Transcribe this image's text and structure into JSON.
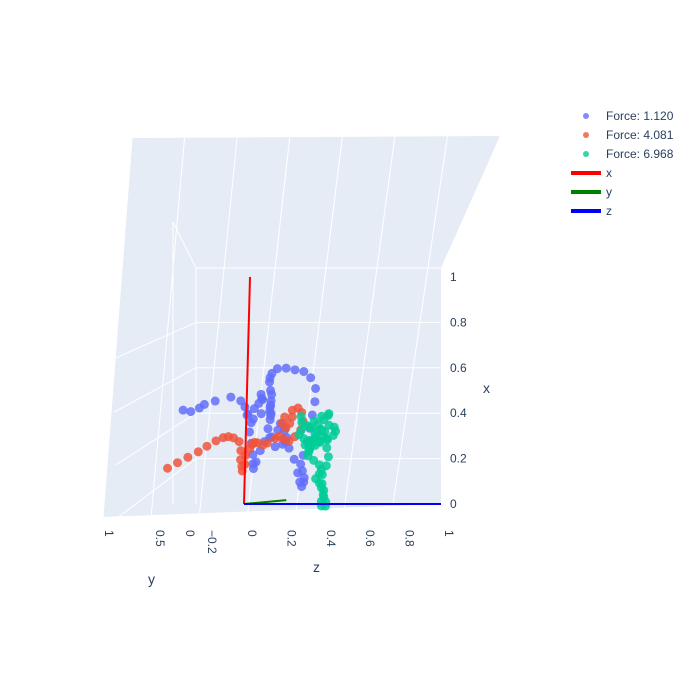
{
  "chart_data": {
    "type": "scatter3d",
    "axes": {
      "x": {
        "title": "x",
        "range": [
          0,
          1
        ],
        "ticks": [
          "0",
          "0.2",
          "0.4",
          "0.6",
          "0.8",
          "1"
        ]
      },
      "y": {
        "title": "y",
        "range": [
          -0.3,
          1
        ],
        "ticks": [
          "1",
          "0.5",
          "0",
          "−0.2"
        ]
      },
      "z": {
        "title": "z",
        "range": [
          0,
          1
        ],
        "ticks": [
          "0",
          "0.2",
          "0.4",
          "0.6",
          "0.8",
          "1"
        ]
      }
    },
    "series": [
      {
        "name": "Force: 1.120",
        "kind": "markers",
        "color": "#636efa",
        "points": [
          [
            0.46,
            0.45,
            0.0
          ],
          [
            0.45,
            0.42,
            0.02
          ],
          [
            0.46,
            0.36,
            0.02
          ],
          [
            0.47,
            0.3,
            0.0
          ],
          [
            0.48,
            0.25,
            0.02
          ],
          [
            0.49,
            0.18,
            0.05
          ],
          [
            0.47,
            0.15,
            0.08
          ],
          [
            0.44,
            0.12,
            0.08
          ],
          [
            0.4,
            0.09,
            0.07
          ],
          [
            0.38,
            0.06,
            0.08
          ],
          [
            0.4,
            0.02,
            0.09
          ],
          [
            0.46,
            0.0,
            0.08
          ],
          [
            0.48,
            -0.03,
            0.05
          ],
          [
            0.46,
            -0.05,
            0.04
          ],
          [
            0.44,
            -0.03,
            0.04
          ],
          [
            0.42,
            0.0,
            0.04
          ],
          [
            0.4,
            0.03,
            0.03
          ],
          [
            0.36,
            0.02,
            0.04
          ],
          [
            0.32,
            0.03,
            0.04
          ],
          [
            0.27,
            0.03,
            0.05
          ],
          [
            0.22,
            0.03,
            0.06
          ],
          [
            0.18,
            0.04,
            0.07
          ],
          [
            0.16,
            0.05,
            0.08
          ],
          [
            0.19,
            0.06,
            0.1
          ],
          [
            0.24,
            0.06,
            0.12
          ],
          [
            0.28,
            0.06,
            0.14
          ],
          [
            0.3,
            0.05,
            0.17
          ],
          [
            0.33,
            0.05,
            0.2
          ],
          [
            0.36,
            0.06,
            0.22
          ],
          [
            0.33,
            0.07,
            0.25
          ],
          [
            0.3,
            0.08,
            0.27
          ],
          [
            0.27,
            0.08,
            0.25
          ],
          [
            0.26,
            0.09,
            0.22
          ],
          [
            0.3,
            0.09,
            0.19
          ],
          [
            0.34,
            0.09,
            0.18
          ],
          [
            0.38,
            0.09,
            0.19
          ],
          [
            0.4,
            0.1,
            0.2
          ],
          [
            0.41,
            0.11,
            0.21
          ],
          [
            0.42,
            0.12,
            0.21
          ],
          [
            0.44,
            0.13,
            0.22
          ],
          [
            0.45,
            0.14,
            0.23
          ],
          [
            0.47,
            0.15,
            0.24
          ],
          [
            0.5,
            0.16,
            0.25
          ],
          [
            0.52,
            0.18,
            0.26
          ],
          [
            0.56,
            0.2,
            0.27
          ],
          [
            0.58,
            0.21,
            0.28
          ],
          [
            0.6,
            0.21,
            0.29
          ],
          [
            0.62,
            0.2,
            0.31
          ],
          [
            0.62,
            0.18,
            0.34
          ],
          [
            0.61,
            0.16,
            0.37
          ],
          [
            0.6,
            0.14,
            0.4
          ],
          [
            0.57,
            0.12,
            0.42
          ],
          [
            0.52,
            0.1,
            0.43
          ],
          [
            0.46,
            0.09,
            0.42
          ],
          [
            0.4,
            0.08,
            0.4
          ],
          [
            0.34,
            0.07,
            0.38
          ],
          [
            0.28,
            0.07,
            0.37
          ],
          [
            0.22,
            0.07,
            0.35
          ],
          [
            0.18,
            0.06,
            0.33
          ],
          [
            0.15,
            0.06,
            0.34
          ],
          [
            0.12,
            0.06,
            0.35
          ],
          [
            0.1,
            0.05,
            0.34
          ],
          [
            0.08,
            0.05,
            0.33
          ],
          [
            0.1,
            0.05,
            0.32
          ],
          [
            0.14,
            0.04,
            0.3
          ],
          [
            0.2,
            0.04,
            0.28
          ],
          [
            0.25,
            0.05,
            0.26
          ],
          [
            0.28,
            0.05,
            0.24
          ]
        ]
      },
      {
        "name": "Force: 4.081",
        "kind": "markers",
        "color": "#ef553b",
        "points": [
          [
            0.2,
            0.55,
            0.0
          ],
          [
            0.22,
            0.48,
            0.0
          ],
          [
            0.24,
            0.42,
            0.01
          ],
          [
            0.26,
            0.36,
            0.02
          ],
          [
            0.28,
            0.3,
            0.02
          ],
          [
            0.3,
            0.25,
            0.03
          ],
          [
            0.31,
            0.2,
            0.03
          ],
          [
            0.31,
            0.15,
            0.02
          ],
          [
            0.3,
            0.1,
            0.01
          ],
          [
            0.28,
            0.06,
            0.01
          ],
          [
            0.24,
            0.06,
            0.02
          ],
          [
            0.2,
            0.06,
            0.02
          ],
          [
            0.17,
            0.05,
            0.02
          ],
          [
            0.15,
            0.06,
            0.03
          ],
          [
            0.18,
            0.07,
            0.05
          ],
          [
            0.22,
            0.08,
            0.06
          ],
          [
            0.25,
            0.08,
            0.08
          ],
          [
            0.27,
            0.09,
            0.1
          ],
          [
            0.28,
            0.1,
            0.12
          ],
          [
            0.28,
            0.12,
            0.15
          ],
          [
            0.27,
            0.12,
            0.18
          ],
          [
            0.28,
            0.13,
            0.21
          ],
          [
            0.3,
            0.13,
            0.25
          ],
          [
            0.31,
            0.14,
            0.28
          ],
          [
            0.3,
            0.15,
            0.31
          ],
          [
            0.29,
            0.15,
            0.34
          ],
          [
            0.31,
            0.15,
            0.37
          ],
          [
            0.34,
            0.15,
            0.4
          ],
          [
            0.38,
            0.16,
            0.42
          ],
          [
            0.42,
            0.17,
            0.42
          ],
          [
            0.44,
            0.17,
            0.4
          ],
          [
            0.43,
            0.17,
            0.37
          ],
          [
            0.4,
            0.17,
            0.33
          ],
          [
            0.37,
            0.16,
            0.31
          ],
          [
            0.35,
            0.16,
            0.33
          ],
          [
            0.37,
            0.16,
            0.35
          ],
          [
            0.4,
            0.17,
            0.37
          ]
        ]
      },
      {
        "name": "Force: 6.968",
        "kind": "markers",
        "color": "#00cc96",
        "points": [
          [
            0.4,
            0.15,
            0.4
          ],
          [
            0.37,
            0.12,
            0.38
          ],
          [
            0.35,
            0.1,
            0.4
          ],
          [
            0.36,
            0.09,
            0.44
          ],
          [
            0.38,
            0.09,
            0.47
          ],
          [
            0.4,
            0.1,
            0.5
          ],
          [
            0.41,
            0.12,
            0.52
          ],
          [
            0.4,
            0.14,
            0.5
          ],
          [
            0.38,
            0.15,
            0.47
          ],
          [
            0.36,
            0.16,
            0.44
          ],
          [
            0.34,
            0.17,
            0.42
          ],
          [
            0.32,
            0.16,
            0.4
          ],
          [
            0.3,
            0.14,
            0.41
          ],
          [
            0.29,
            0.12,
            0.43
          ],
          [
            0.28,
            0.1,
            0.46
          ],
          [
            0.29,
            0.09,
            0.49
          ],
          [
            0.31,
            0.09,
            0.52
          ],
          [
            0.33,
            0.1,
            0.54
          ],
          [
            0.35,
            0.12,
            0.55
          ],
          [
            0.36,
            0.14,
            0.54
          ],
          [
            0.34,
            0.16,
            0.52
          ],
          [
            0.31,
            0.17,
            0.5
          ],
          [
            0.28,
            0.17,
            0.48
          ],
          [
            0.26,
            0.16,
            0.46
          ],
          [
            0.25,
            0.14,
            0.44
          ],
          [
            0.24,
            0.12,
            0.42
          ],
          [
            0.22,
            0.1,
            0.4
          ],
          [
            0.2,
            0.1,
            0.43
          ],
          [
            0.18,
            0.1,
            0.46
          ],
          [
            0.16,
            0.11,
            0.48
          ],
          [
            0.14,
            0.11,
            0.47
          ],
          [
            0.12,
            0.12,
            0.46
          ],
          [
            0.1,
            0.12,
            0.48
          ],
          [
            0.08,
            0.13,
            0.5
          ],
          [
            0.05,
            0.13,
            0.51
          ],
          [
            0.02,
            0.14,
            0.51
          ],
          [
            0.0,
            0.15,
            0.52
          ],
          [
            0.0,
            0.16,
            0.55
          ],
          [
            0.02,
            0.17,
            0.56
          ],
          [
            0.04,
            0.16,
            0.54
          ],
          [
            0.07,
            0.15,
            0.53
          ],
          [
            0.1,
            0.15,
            0.52
          ],
          [
            0.14,
            0.15,
            0.52
          ],
          [
            0.18,
            0.15,
            0.54
          ],
          [
            0.22,
            0.15,
            0.55
          ],
          [
            0.26,
            0.15,
            0.54
          ],
          [
            0.3,
            0.14,
            0.53
          ],
          [
            0.33,
            0.13,
            0.51
          ],
          [
            0.34,
            0.12,
            0.48
          ],
          [
            0.32,
            0.12,
            0.45
          ],
          [
            0.29,
            0.12,
            0.42
          ],
          [
            0.27,
            0.12,
            0.4
          ],
          [
            0.26,
            0.13,
            0.43
          ],
          [
            0.27,
            0.14,
            0.47
          ],
          [
            0.29,
            0.15,
            0.5
          ],
          [
            0.31,
            0.15,
            0.52
          ],
          [
            0.33,
            0.15,
            0.49
          ],
          [
            0.35,
            0.15,
            0.46
          ]
        ]
      },
      {
        "name": "x",
        "kind": "line",
        "color": "#ff0000",
        "points": [
          [
            0,
            0,
            0
          ],
          [
            1,
            0,
            0
          ]
        ]
      },
      {
        "name": "y",
        "kind": "line",
        "color": "#008000",
        "points": [
          [
            0,
            0,
            0
          ],
          [
            0,
            -0.3,
            0
          ]
        ]
      },
      {
        "name": "z",
        "kind": "line",
        "color": "#0000ff",
        "points": [
          [
            0,
            0,
            0
          ],
          [
            0,
            0,
            1
          ]
        ]
      }
    ],
    "legend_position": "top-right",
    "grid": true
  }
}
